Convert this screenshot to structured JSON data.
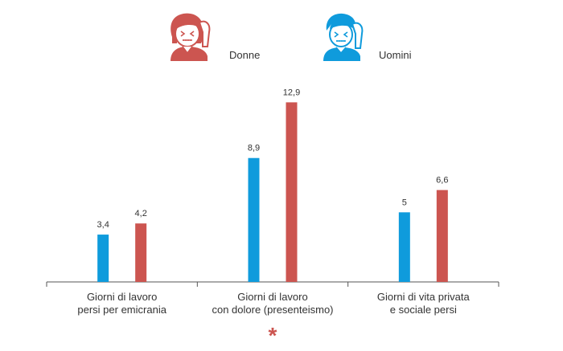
{
  "colors": {
    "blue": "#0f9bdc",
    "red": "#cc5550",
    "axis": "#555555",
    "text": "#333333"
  },
  "legend": [
    {
      "label": "Donne",
      "color": "#cc5550",
      "icon": "woman-headache-icon"
    },
    {
      "label": "Uomini",
      "color": "#0f9bdc",
      "icon": "man-headache-icon"
    }
  ],
  "chart_data": {
    "type": "bar",
    "categories": [
      "Giorni di lavoro persi per emicrania",
      "Giorni di lavoro con dolore (presenteismo)",
      "Giorni di vita privata e sociale persi"
    ],
    "category_lines": [
      [
        "Giorni di lavoro",
        "persi per emicrania"
      ],
      [
        "Giorni di lavoro",
        "con dolore (presenteismo)"
      ],
      [
        "Giorni di vita privata",
        "e sociale persi"
      ]
    ],
    "series": [
      {
        "name": "Uomini",
        "color": "#0f9bdc",
        "values": [
          3.4,
          8.9,
          5
        ],
        "labels": [
          "3,4",
          "8,9",
          "5"
        ]
      },
      {
        "name": "Donne",
        "color": "#cc5550",
        "values": [
          4.2,
          12.9,
          6.6
        ],
        "labels": [
          "4,2",
          "12,9",
          "6,6"
        ]
      }
    ],
    "ylim": [
      0,
      13.5
    ],
    "grid": false,
    "legend_position": "top",
    "annotations": [
      {
        "text": "*",
        "category_index": 1,
        "color": "#cc5550"
      }
    ]
  }
}
